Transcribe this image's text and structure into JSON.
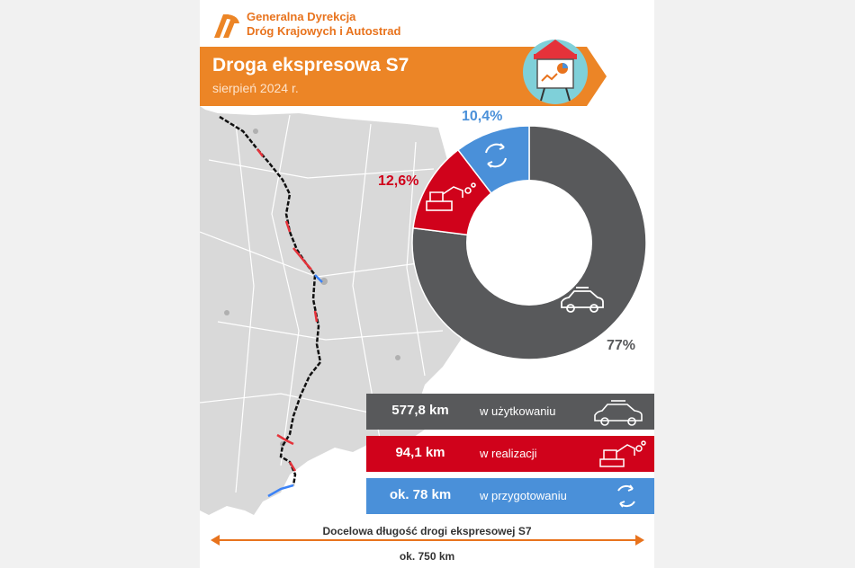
{
  "header": {
    "org_line1": "Generalna Dyrekcja",
    "org_line2": "Dróg Krajowych i Autostrad",
    "title": "Droga ekspresowa S7",
    "subtitle": "sierpień 2024 r."
  },
  "colors": {
    "brand_orange": "#ec8526",
    "in_use": "#58595b",
    "in_realization": "#d0021b",
    "in_preparation": "#4a90d9",
    "route_done": "#111111",
    "route_building": "#e5323a",
    "route_planned": "#3b82f6"
  },
  "icons": {
    "logo": "gddkia-logo-icon",
    "header": "presentation-easel-icon",
    "in_use": "car-icon",
    "in_realization": "excavator-icon",
    "in_preparation": "refresh-cycle-icon"
  },
  "map": {
    "name": "Poland map with S7 route"
  },
  "chart_data": {
    "type": "pie",
    "donut": true,
    "categories": [
      "w użytkowaniu",
      "w realizacji",
      "w przygotowaniu"
    ],
    "values": [
      77,
      12.6,
      10.4
    ],
    "labels": [
      "77%",
      "12,6%",
      "10,4%"
    ],
    "start_angle_deg": 0,
    "direction": "clockwise"
  },
  "stats": [
    {
      "value": "577,8 km",
      "label": "w użytkowaniu"
    },
    {
      "value": "94,1 km",
      "label": "w realizacji"
    },
    {
      "value": "ok. 78 km",
      "label": "w przygotowaniu"
    }
  ],
  "total": {
    "label": "Docelowa długość drogi ekspresowej S7",
    "value": "ok. 750 km"
  }
}
